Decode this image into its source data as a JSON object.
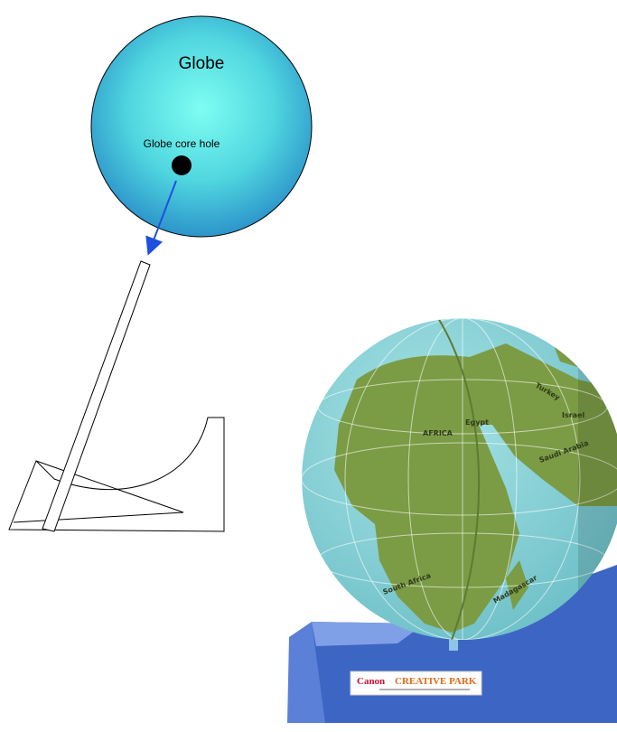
{
  "diagram": {
    "globe_label": "Globe",
    "core_hole_label": "Globe core hole",
    "photo": {
      "map_labels": [
        "AFRICA",
        "Egypt",
        "Turkey",
        "Israel",
        "Saudi Arabia",
        "South Africa",
        "Madagascar"
      ],
      "brand": "Canon",
      "brand_sub": "CREATIVE PARK"
    }
  }
}
